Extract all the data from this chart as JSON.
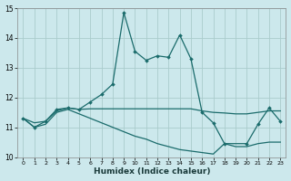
{
  "xlabel": "Humidex (Indice chaleur)",
  "xlim": [
    -0.5,
    23.5
  ],
  "ylim": [
    10,
    15
  ],
  "yticks": [
    10,
    11,
    12,
    13,
    14,
    15
  ],
  "xticks": [
    0,
    1,
    2,
    3,
    4,
    5,
    6,
    7,
    8,
    9,
    10,
    11,
    12,
    13,
    14,
    15,
    16,
    17,
    18,
    19,
    20,
    21,
    22,
    23
  ],
  "bg_color": "#cce8ec",
  "line_color": "#1a6b6b",
  "grid_color": "#aacccc",
  "curve1_x": [
    0,
    1,
    2,
    3,
    4,
    5,
    6,
    7,
    8,
    9,
    10,
    11,
    12,
    13,
    14,
    15,
    16,
    17,
    18,
    20,
    21,
    22,
    23
  ],
  "curve1_y": [
    11.3,
    11.0,
    11.2,
    11.6,
    11.65,
    11.6,
    11.85,
    12.1,
    12.45,
    14.85,
    13.55,
    13.25,
    13.4,
    13.35,
    14.1,
    13.3,
    11.5,
    11.15,
    10.45,
    10.45,
    11.1,
    11.65,
    11.2
  ],
  "curve2_x": [
    0,
    1,
    2,
    3,
    4,
    5,
    6,
    7,
    8,
    9,
    10,
    11,
    12,
    13,
    14,
    15,
    16,
    17,
    18,
    19,
    20,
    21,
    22,
    23
  ],
  "curve2_y": [
    11.3,
    11.15,
    11.2,
    11.55,
    11.65,
    11.6,
    11.62,
    11.62,
    11.62,
    11.62,
    11.62,
    11.62,
    11.62,
    11.62,
    11.62,
    11.62,
    11.55,
    11.5,
    11.48,
    11.45,
    11.45,
    11.5,
    11.55,
    11.55
  ],
  "curve3_x": [
    0,
    1,
    2,
    3,
    4,
    5,
    6,
    7,
    8,
    9,
    10,
    11,
    12,
    13,
    14,
    15,
    16,
    17,
    18,
    19,
    20,
    21,
    22,
    23
  ],
  "curve3_y": [
    11.3,
    11.0,
    11.1,
    11.5,
    11.6,
    11.45,
    11.3,
    11.15,
    11.0,
    10.85,
    10.7,
    10.6,
    10.45,
    10.35,
    10.25,
    10.2,
    10.15,
    10.1,
    10.45,
    10.35,
    10.35,
    10.45,
    10.5,
    10.5
  ]
}
